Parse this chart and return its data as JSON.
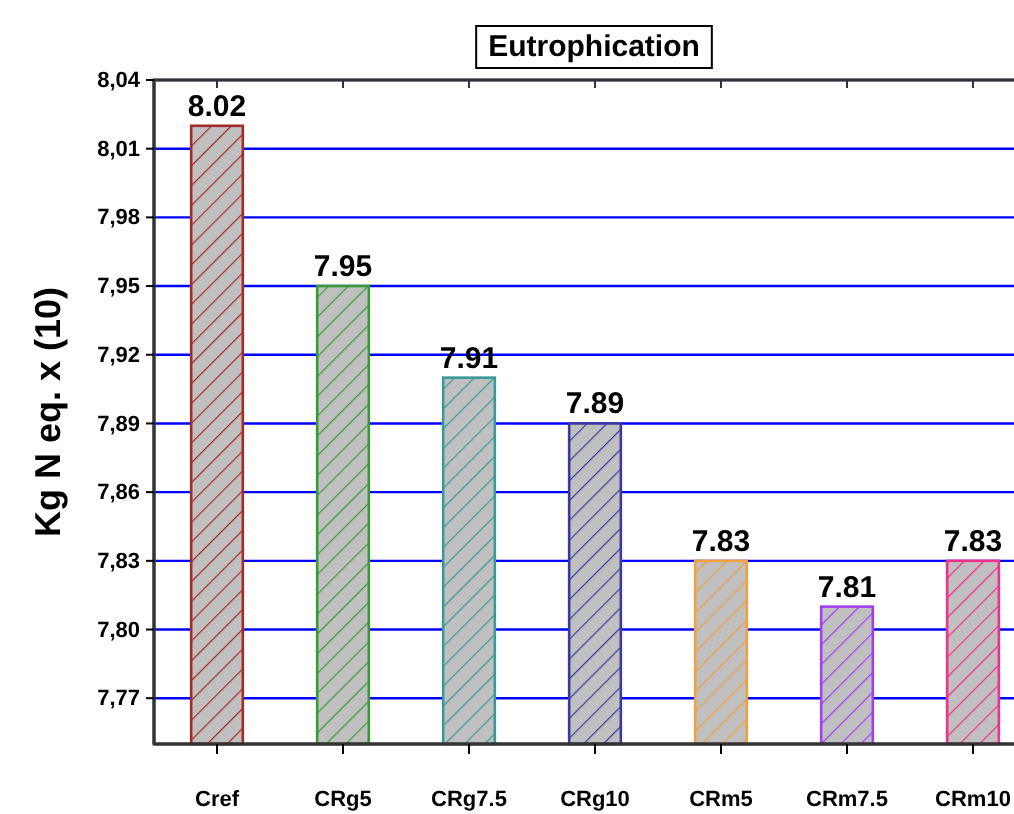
{
  "chart_data": {
    "type": "bar",
    "title": "Eutrophication",
    "ylabel": "Kg N eq. x (10)",
    "categories": [
      "Cref",
      "CRg5",
      "CRg7.5",
      "CRg10",
      "CRm5",
      "CRm7.5",
      "CRm10"
    ],
    "values": [
      8.02,
      7.95,
      7.91,
      7.89,
      7.83,
      7.81,
      7.83
    ],
    "colors": [
      "#a52a2a",
      "#3a9a3a",
      "#3a9a9a",
      "#3a3aa0",
      "#f0a040",
      "#a040f0",
      "#f0308a"
    ],
    "ylim": [
      7.75,
      8.04
    ],
    "yticks": [
      {
        "value": 7.77,
        "label": "7,77"
      },
      {
        "value": 7.8,
        "label": "7,80"
      },
      {
        "value": 7.83,
        "label": "7,83"
      },
      {
        "value": 7.86,
        "label": "7,86"
      },
      {
        "value": 7.89,
        "label": "7,89"
      },
      {
        "value": 7.92,
        "label": "7,92"
      },
      {
        "value": 7.95,
        "label": "7,95"
      },
      {
        "value": 7.98,
        "label": "7,98"
      },
      {
        "value": 8.01,
        "label": "8,01"
      },
      {
        "value": 8.04,
        "label": "8,04"
      }
    ],
    "grid": "y",
    "data_labels": true
  }
}
